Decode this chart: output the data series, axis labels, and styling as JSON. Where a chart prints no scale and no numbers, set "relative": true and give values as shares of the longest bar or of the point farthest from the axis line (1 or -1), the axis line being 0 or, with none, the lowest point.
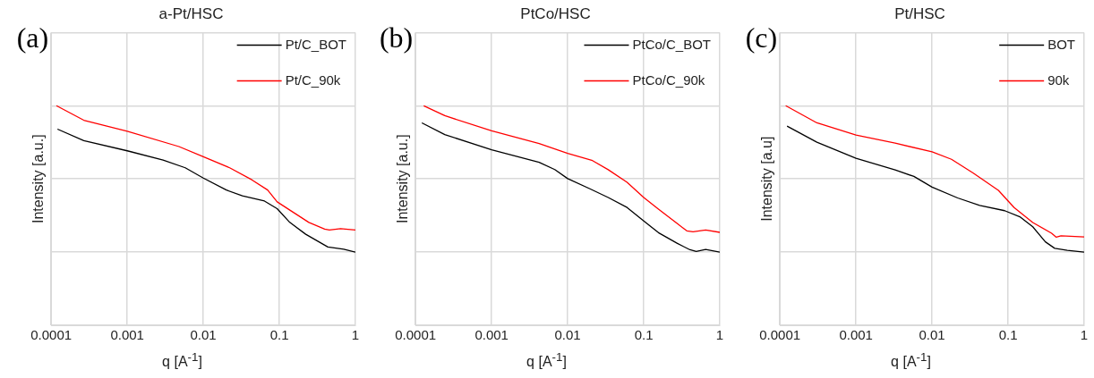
{
  "chart_data": [
    {
      "type": "line",
      "title": "a-Pt/HSC",
      "xlabel": "q [A$^{-1}$]",
      "ylabel": "Intensity [a.u.]",
      "annotations": [
        "(a)"
      ],
      "log": "x",
      "xlim": [
        0.0001,
        1
      ],
      "xticks": [
        0.0001,
        0.001,
        0.01,
        0.1,
        1
      ],
      "grid": true,
      "legend": "top right",
      "relative": true,
      "series": [
        {
          "name": "Pt/C_BOT",
          "color": "#000000",
          "x": [
            0.000121,
            0.000268,
            0.001,
            0.00296,
            0.00579,
            0.01,
            0.0201,
            0.0326,
            0.0637,
            0.0935,
            0.137,
            0.222,
            0.434,
            0.701,
            1
          ],
          "values": [
            0.84,
            0.762,
            0.692,
            0.628,
            0.576,
            0.506,
            0.424,
            0.384,
            0.349,
            0.297,
            0.203,
            0.122,
            0.035,
            0.02,
            0
          ]
        },
        {
          "name": "Pt/C_90k",
          "color": "#ff0000",
          "x": [
            0.000117,
            0.000268,
            0.001,
            0.00478,
            0.01,
            0.0222,
            0.0434,
            0.0701,
            0.0935,
            0.151,
            0.244,
            0.394,
            0.455,
            0.637,
            1
          ],
          "values": [
            1,
            0.901,
            0.826,
            0.721,
            0.651,
            0.576,
            0.494,
            0.424,
            0.343,
            0.273,
            0.203,
            0.157,
            0.151,
            0.16,
            0.151
          ]
        }
      ]
    },
    {
      "type": "line",
      "title": "PtCo/HSC",
      "xlabel": "q [A$^{-1}$]",
      "ylabel": "Intensity [a.u.]",
      "annotations": [
        "(b)"
      ],
      "log": "x",
      "xlim": [
        0.0001,
        1
      ],
      "xticks": [
        0.0001,
        0.001,
        0.01,
        0.1,
        1
      ],
      "grid": true,
      "legend": "top right",
      "relative": true,
      "series": [
        {
          "name": "PtCo/C_BOT",
          "color": "#000000",
          "x": [
            0.000121,
            0.000242,
            0.001,
            0.00421,
            0.00677,
            0.01,
            0.0193,
            0.0341,
            0.0604,
            0.1,
            0.156,
            0.277,
            0.405,
            0.49,
            0.652,
            1
          ],
          "values": [
            0.883,
            0.803,
            0.699,
            0.613,
            0.564,
            0.502,
            0.434,
            0.373,
            0.305,
            0.213,
            0.133,
            0.059,
            0.016,
            0.004,
            0.018,
            0
          ]
        },
        {
          "name": "PtCo/C_90k",
          "color": "#ff0000",
          "x": [
            0.000128,
            0.000242,
            0.001,
            0.00421,
            0.01,
            0.0212,
            0.0341,
            0.0604,
            0.1,
            0.156,
            0.277,
            0.368,
            0.445,
            0.652,
            1
          ],
          "values": [
            1,
            0.932,
            0.828,
            0.742,
            0.674,
            0.625,
            0.563,
            0.477,
            0.373,
            0.293,
            0.194,
            0.145,
            0.139,
            0.151,
            0.135
          ]
        }
      ]
    },
    {
      "type": "line",
      "title": "Pt/HSC",
      "xlabel": "q [A$^{-1}$]",
      "ylabel": "Intensity [a.u]",
      "annotations": [
        "(c)"
      ],
      "log": "x",
      "xlim": [
        0.0001,
        1
      ],
      "xticks": [
        0.0001,
        0.001,
        0.01,
        0.1,
        1
      ],
      "grid": true,
      "legend": "top right",
      "relative": true,
      "series": [
        {
          "name": "BOT",
          "color": "#000000",
          "x": [
            0.000124,
            0.000306,
            0.001,
            0.00327,
            0.00577,
            0.01,
            0.0217,
            0.0423,
            0.0901,
            0.145,
            0.211,
            0.309,
            0.41,
            0.6,
            1
          ],
          "values": [
            0.861,
            0.751,
            0.641,
            0.561,
            0.517,
            0.444,
            0.37,
            0.319,
            0.283,
            0.239,
            0.173,
            0.07,
            0.026,
            0.012,
            0
          ]
        },
        {
          "name": "90k",
          "color": "#ff0000",
          "x": [
            0.000119,
            0.000306,
            0.001,
            0.00327,
            0.01,
            0.018,
            0.0349,
            0.0745,
            0.12,
            0.211,
            0.373,
            0.43,
            0.496,
            1
          ],
          "values": [
            1,
            0.883,
            0.799,
            0.744,
            0.685,
            0.634,
            0.539,
            0.422,
            0.304,
            0.202,
            0.129,
            0.102,
            0.111,
            0.104
          ]
        }
      ]
    }
  ]
}
